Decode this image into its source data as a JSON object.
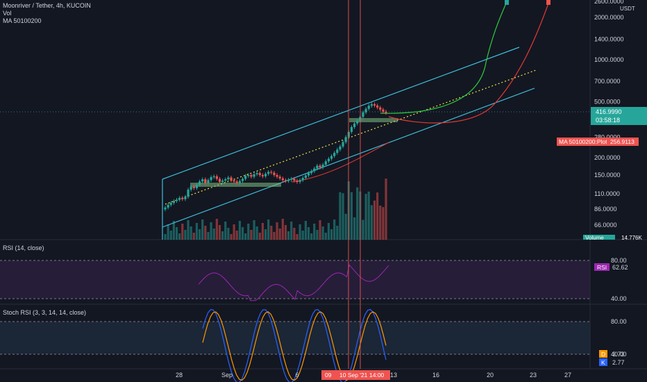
{
  "header": {
    "symbol": "Moonriver / Tether, 4h, KUCOIN",
    "vol_label": "Vol",
    "ma_label": "MA 50100200"
  },
  "price_axis": {
    "currency": "USDT",
    "current_price": "416.9990",
    "countdown": "03:58:18",
    "ma_tag_label": "MA 50100200:Plot",
    "ma_tag_value": "256.9113",
    "volume_tag": "Volume",
    "volume_tag_value": "14.776K"
  },
  "rsi": {
    "label": "RSI (14, close)",
    "tag_label": "RSI",
    "tag_value": "62.62"
  },
  "stoch": {
    "label": "Stoch RSI (3, 3, 14, 14, close)",
    "d_label": "D",
    "d_value": "3.73",
    "k_label": "K",
    "k_value": "2.77"
  },
  "time_axis": {
    "highlight_label": "09",
    "crosshair_label": "10 Sep '21",
    "crosshair_time": "14:00"
  },
  "colors": {
    "background": "#131722",
    "up": "#26a69a",
    "down": "#ef5350",
    "channel": "#3dbfd9",
    "trend": "#f0e442",
    "curve_green": "#2ecc40",
    "curve_red": "#e53935",
    "rsi": "#9c27b0",
    "stoch_k": "#2962ff",
    "stoch_d": "#ff9800"
  },
  "chart_data": {
    "type": "candlestick",
    "title": "Moonriver / Tether, 4h, KUCOIN",
    "y_scale": "log",
    "y_ticks": [
      "2600.0000",
      "2000.0000",
      "1400.0000",
      "1000.0000",
      "700.0000",
      "500.0000",
      "400.0000",
      "280.0000",
      "200.0000",
      "150.0000",
      "110.0000",
      "86.0000",
      "66.0000"
    ],
    "x_ticks": [
      "28",
      "Sep",
      "6",
      "13",
      "16",
      "20",
      "23",
      "27"
    ],
    "rsi_ticks": [
      "80.00",
      "40.00"
    ],
    "stoch_ticks": [
      "80.00",
      "40.00"
    ],
    "close_prices": [
      88,
      92,
      95,
      98,
      100,
      103,
      101,
      105,
      118,
      124,
      121,
      128,
      135,
      140,
      132,
      138,
      145,
      147,
      141,
      134,
      137,
      140,
      144,
      138,
      135,
      132,
      136,
      141,
      148,
      150,
      146,
      152,
      155,
      150,
      147,
      153,
      158,
      156,
      150,
      146,
      142,
      138,
      136,
      139,
      141,
      137,
      134,
      138,
      143,
      149,
      155,
      160,
      167,
      175,
      170,
      178,
      188,
      196,
      205,
      216,
      228,
      240,
      258,
      280,
      305,
      330,
      350,
      365,
      390,
      420,
      445,
      468,
      480,
      470,
      455,
      440,
      425,
      417
    ],
    "current_price": 416.999,
    "ma_value": 256.9113,
    "rsi_current": 62.62,
    "stoch_k": 2.77,
    "stoch_d": 3.73
  }
}
